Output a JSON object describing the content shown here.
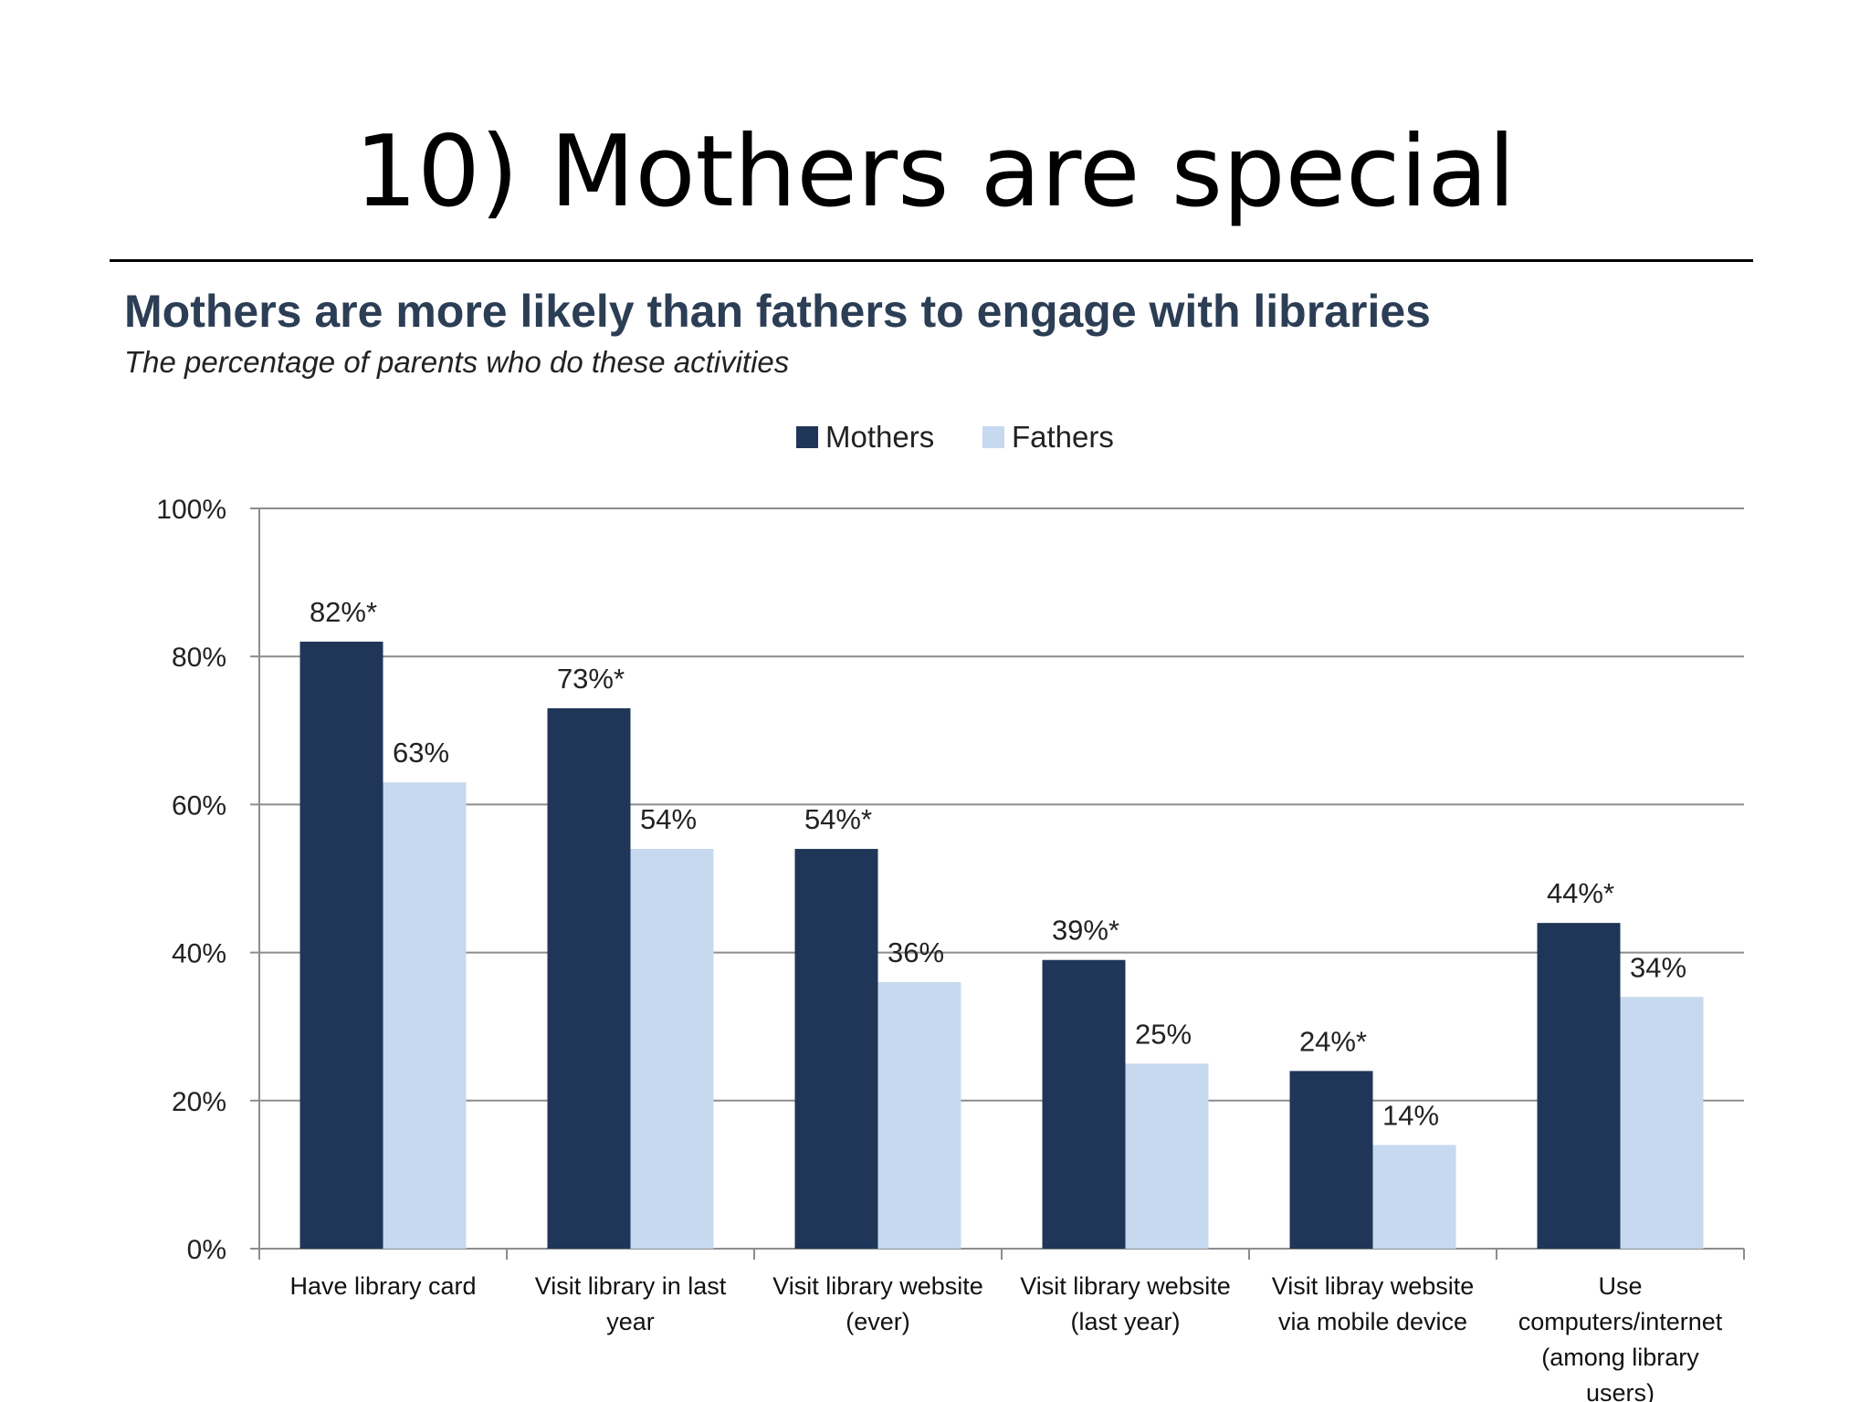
{
  "slide": {
    "title": "10) Mothers are special"
  },
  "chart_data": {
    "type": "bar",
    "title": "Mothers are more likely than fathers to engage with libraries",
    "subtitle": "The percentage of parents who do these activities",
    "categories": [
      [
        "Have library card"
      ],
      [
        "Visit library in last",
        "year"
      ],
      [
        "Visit library website",
        "(ever)"
      ],
      [
        "Visit library website",
        "(last year)"
      ],
      [
        "Visit libray website",
        "via mobile device"
      ],
      [
        "Use",
        "computers/internet",
        "(among library",
        "users)"
      ]
    ],
    "series": [
      {
        "name": "Mothers",
        "color": "#1f3658",
        "values": [
          82,
          73,
          54,
          39,
          24,
          44
        ],
        "labels": [
          "82%*",
          "73%*",
          "54%*",
          "39%*",
          "24%*",
          "44%*"
        ]
      },
      {
        "name": "Fathers",
        "color": "#c6d9ef",
        "values": [
          63,
          54,
          36,
          25,
          14,
          34
        ],
        "labels": [
          "63%",
          "54%",
          "36%",
          "25%",
          "14%",
          "34%"
        ]
      }
    ],
    "ylim": [
      0,
      100
    ],
    "yticks": [
      "0%",
      "20%",
      "40%",
      "60%",
      "80%",
      "100%"
    ],
    "grid": true,
    "legend": "top-center"
  }
}
